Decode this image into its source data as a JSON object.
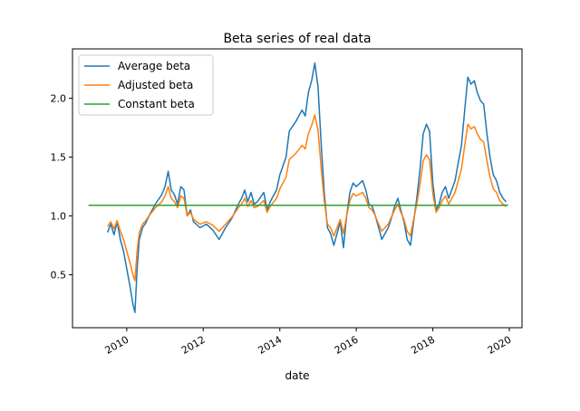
{
  "chart_data": {
    "type": "line",
    "title": "Beta series of real data",
    "xlabel": "date",
    "ylabel": "",
    "xlim": [
      "2008-08-01",
      "2020-05-01"
    ],
    "ylim": [
      0.05,
      2.42
    ],
    "xticks": [
      "2010",
      "2012",
      "2014",
      "2016",
      "2018",
      "2020"
    ],
    "yticks": [
      "0.5",
      "1.0",
      "1.5",
      "2.0"
    ],
    "xtick_rotation": 30,
    "grid": false,
    "legend_position": "top-left",
    "series": [
      {
        "name": "Average beta",
        "color": "#1f77b4",
        "points": [
          [
            "2009-07-01",
            0.86
          ],
          [
            "2009-08-01",
            0.93
          ],
          [
            "2009-09-01",
            0.84
          ],
          [
            "2009-10-01",
            0.95
          ],
          [
            "2009-11-01",
            0.8
          ],
          [
            "2009-12-01",
            0.7
          ],
          [
            "2010-01-01",
            0.55
          ],
          [
            "2010-02-01",
            0.4
          ],
          [
            "2010-03-01",
            0.25
          ],
          [
            "2010-03-20",
            0.18
          ],
          [
            "2010-04-10",
            0.55
          ],
          [
            "2010-05-01",
            0.8
          ],
          [
            "2010-06-01",
            0.9
          ],
          [
            "2010-07-01",
            0.94
          ],
          [
            "2010-08-01",
            1.0
          ],
          [
            "2010-10-01",
            1.1
          ],
          [
            "2010-12-01",
            1.18
          ],
          [
            "2011-01-01",
            1.25
          ],
          [
            "2011-02-01",
            1.38
          ],
          [
            "2011-03-01",
            1.22
          ],
          [
            "2011-04-01",
            1.18
          ],
          [
            "2011-05-01",
            1.1
          ],
          [
            "2011-06-01",
            1.25
          ],
          [
            "2011-07-01",
            1.22
          ],
          [
            "2011-08-01",
            1.0
          ],
          [
            "2011-09-01",
            1.05
          ],
          [
            "2011-10-01",
            0.95
          ],
          [
            "2011-12-01",
            0.9
          ],
          [
            "2012-02-01",
            0.93
          ],
          [
            "2012-04-01",
            0.88
          ],
          [
            "2012-06-01",
            0.8
          ],
          [
            "2012-08-01",
            0.9
          ],
          [
            "2012-10-01",
            0.98
          ],
          [
            "2012-12-01",
            1.1
          ],
          [
            "2013-01-01",
            1.15
          ],
          [
            "2013-02-01",
            1.22
          ],
          [
            "2013-03-01",
            1.12
          ],
          [
            "2013-04-01",
            1.2
          ],
          [
            "2013-05-01",
            1.1
          ],
          [
            "2013-06-01",
            1.12
          ],
          [
            "2013-08-01",
            1.2
          ],
          [
            "2013-09-01",
            1.05
          ],
          [
            "2013-10-01",
            1.12
          ],
          [
            "2013-12-01",
            1.22
          ],
          [
            "2014-01-01",
            1.35
          ],
          [
            "2014-03-01",
            1.5
          ],
          [
            "2014-04-01",
            1.72
          ],
          [
            "2014-06-01",
            1.8
          ],
          [
            "2014-08-01",
            1.9
          ],
          [
            "2014-09-01",
            1.85
          ],
          [
            "2014-10-01",
            2.05
          ],
          [
            "2014-11-01",
            2.15
          ],
          [
            "2014-12-01",
            2.3
          ],
          [
            "2015-01-01",
            2.1
          ],
          [
            "2015-02-01",
            1.6
          ],
          [
            "2015-03-01",
            1.2
          ],
          [
            "2015-04-01",
            0.9
          ],
          [
            "2015-05-01",
            0.85
          ],
          [
            "2015-06-01",
            0.75
          ],
          [
            "2015-07-01",
            0.85
          ],
          [
            "2015-08-01",
            0.95
          ],
          [
            "2015-09-01",
            0.73
          ],
          [
            "2015-10-01",
            1.0
          ],
          [
            "2015-11-01",
            1.2
          ],
          [
            "2015-12-01",
            1.28
          ],
          [
            "2016-01-01",
            1.25
          ],
          [
            "2016-03-01",
            1.3
          ],
          [
            "2016-04-01",
            1.22
          ],
          [
            "2016-05-01",
            1.1
          ],
          [
            "2016-06-01",
            1.08
          ],
          [
            "2016-07-01",
            1.0
          ],
          [
            "2016-08-01",
            0.9
          ],
          [
            "2016-09-01",
            0.8
          ],
          [
            "2016-10-01",
            0.85
          ],
          [
            "2016-11-01",
            0.9
          ],
          [
            "2016-12-01",
            0.98
          ],
          [
            "2017-01-01",
            1.08
          ],
          [
            "2017-02-01",
            1.15
          ],
          [
            "2017-03-01",
            1.05
          ],
          [
            "2017-04-01",
            0.95
          ],
          [
            "2017-05-01",
            0.8
          ],
          [
            "2017-06-01",
            0.75
          ],
          [
            "2017-07-01",
            0.95
          ],
          [
            "2017-08-01",
            1.15
          ],
          [
            "2017-09-01",
            1.4
          ],
          [
            "2017-10-01",
            1.7
          ],
          [
            "2017-11-01",
            1.78
          ],
          [
            "2017-12-01",
            1.72
          ],
          [
            "2018-01-01",
            1.28
          ],
          [
            "2018-02-01",
            1.05
          ],
          [
            "2018-03-01",
            1.1
          ],
          [
            "2018-04-01",
            1.2
          ],
          [
            "2018-05-01",
            1.25
          ],
          [
            "2018-06-01",
            1.15
          ],
          [
            "2018-08-01",
            1.3
          ],
          [
            "2018-10-01",
            1.6
          ],
          [
            "2018-11-01",
            1.9
          ],
          [
            "2018-12-01",
            2.18
          ],
          [
            "2019-01-01",
            2.12
          ],
          [
            "2019-02-01",
            2.15
          ],
          [
            "2019-03-01",
            2.05
          ],
          [
            "2019-04-01",
            1.98
          ],
          [
            "2019-05-01",
            1.95
          ],
          [
            "2019-06-01",
            1.7
          ],
          [
            "2019-07-01",
            1.5
          ],
          [
            "2019-08-01",
            1.35
          ],
          [
            "2019-09-01",
            1.3
          ],
          [
            "2019-10-01",
            1.2
          ],
          [
            "2019-11-01",
            1.15
          ],
          [
            "2019-12-01",
            1.12
          ]
        ]
      },
      {
        "name": "Adjusted beta",
        "color": "#ff7f0e",
        "points": [
          [
            "2009-07-01",
            0.91
          ],
          [
            "2009-08-01",
            0.95
          ],
          [
            "2009-09-01",
            0.89
          ],
          [
            "2009-10-01",
            0.96
          ],
          [
            "2009-11-01",
            0.87
          ],
          [
            "2009-12-01",
            0.8
          ],
          [
            "2010-01-01",
            0.7
          ],
          [
            "2010-02-01",
            0.6
          ],
          [
            "2010-03-01",
            0.5
          ],
          [
            "2010-03-20",
            0.45
          ],
          [
            "2010-04-10",
            0.7
          ],
          [
            "2010-05-01",
            0.86
          ],
          [
            "2010-06-01",
            0.93
          ],
          [
            "2010-07-01",
            0.96
          ],
          [
            "2010-08-01",
            1.0
          ],
          [
            "2010-10-01",
            1.07
          ],
          [
            "2010-12-01",
            1.12
          ],
          [
            "2011-01-01",
            1.17
          ],
          [
            "2011-02-01",
            1.25
          ],
          [
            "2011-03-01",
            1.15
          ],
          [
            "2011-04-01",
            1.12
          ],
          [
            "2011-05-01",
            1.07
          ],
          [
            "2011-06-01",
            1.17
          ],
          [
            "2011-07-01",
            1.15
          ],
          [
            "2011-08-01",
            1.0
          ],
          [
            "2011-09-01",
            1.03
          ],
          [
            "2011-10-01",
            0.97
          ],
          [
            "2011-12-01",
            0.93
          ],
          [
            "2012-02-01",
            0.95
          ],
          [
            "2012-04-01",
            0.92
          ],
          [
            "2012-06-01",
            0.87
          ],
          [
            "2012-08-01",
            0.93
          ],
          [
            "2012-10-01",
            0.99
          ],
          [
            "2012-12-01",
            1.07
          ],
          [
            "2013-01-01",
            1.1
          ],
          [
            "2013-02-01",
            1.15
          ],
          [
            "2013-03-01",
            1.08
          ],
          [
            "2013-04-01",
            1.13
          ],
          [
            "2013-05-01",
            1.07
          ],
          [
            "2013-06-01",
            1.08
          ],
          [
            "2013-08-01",
            1.13
          ],
          [
            "2013-09-01",
            1.03
          ],
          [
            "2013-10-01",
            1.08
          ],
          [
            "2013-12-01",
            1.15
          ],
          [
            "2014-01-01",
            1.23
          ],
          [
            "2014-03-01",
            1.33
          ],
          [
            "2014-04-01",
            1.48
          ],
          [
            "2014-06-01",
            1.53
          ],
          [
            "2014-08-01",
            1.6
          ],
          [
            "2014-09-01",
            1.57
          ],
          [
            "2014-10-01",
            1.7
          ],
          [
            "2014-11-01",
            1.77
          ],
          [
            "2014-12-01",
            1.86
          ],
          [
            "2015-01-01",
            1.73
          ],
          [
            "2015-02-01",
            1.4
          ],
          [
            "2015-03-01",
            1.13
          ],
          [
            "2015-04-01",
            0.93
          ],
          [
            "2015-05-01",
            0.9
          ],
          [
            "2015-06-01",
            0.83
          ],
          [
            "2015-07-01",
            0.9
          ],
          [
            "2015-08-01",
            0.97
          ],
          [
            "2015-09-01",
            0.85
          ],
          [
            "2015-10-01",
            1.0
          ],
          [
            "2015-11-01",
            1.13
          ],
          [
            "2015-12-01",
            1.19
          ],
          [
            "2016-01-01",
            1.17
          ],
          [
            "2016-03-01",
            1.2
          ],
          [
            "2016-04-01",
            1.15
          ],
          [
            "2016-05-01",
            1.07
          ],
          [
            "2016-06-01",
            1.05
          ],
          [
            "2016-07-01",
            1.0
          ],
          [
            "2016-08-01",
            0.93
          ],
          [
            "2016-09-01",
            0.87
          ],
          [
            "2016-10-01",
            0.9
          ],
          [
            "2016-11-01",
            0.93
          ],
          [
            "2016-12-01",
            0.99
          ],
          [
            "2017-01-01",
            1.05
          ],
          [
            "2017-02-01",
            1.1
          ],
          [
            "2017-03-01",
            1.03
          ],
          [
            "2017-04-01",
            0.97
          ],
          [
            "2017-05-01",
            0.87
          ],
          [
            "2017-06-01",
            0.83
          ],
          [
            "2017-07-01",
            0.97
          ],
          [
            "2017-08-01",
            1.1
          ],
          [
            "2017-09-01",
            1.27
          ],
          [
            "2017-10-01",
            1.47
          ],
          [
            "2017-11-01",
            1.52
          ],
          [
            "2017-12-01",
            1.48
          ],
          [
            "2018-01-01",
            1.19
          ],
          [
            "2018-02-01",
            1.03
          ],
          [
            "2018-03-01",
            1.07
          ],
          [
            "2018-04-01",
            1.13
          ],
          [
            "2018-05-01",
            1.17
          ],
          [
            "2018-06-01",
            1.1
          ],
          [
            "2018-08-01",
            1.2
          ],
          [
            "2018-10-01",
            1.4
          ],
          [
            "2018-11-01",
            1.6
          ],
          [
            "2018-12-01",
            1.78
          ],
          [
            "2019-01-01",
            1.74
          ],
          [
            "2019-02-01",
            1.76
          ],
          [
            "2019-03-01",
            1.7
          ],
          [
            "2019-04-01",
            1.65
          ],
          [
            "2019-05-01",
            1.63
          ],
          [
            "2019-06-01",
            1.47
          ],
          [
            "2019-07-01",
            1.33
          ],
          [
            "2019-08-01",
            1.23
          ],
          [
            "2019-09-01",
            1.2
          ],
          [
            "2019-10-01",
            1.13
          ],
          [
            "2019-11-01",
            1.1
          ],
          [
            "2019-12-01",
            1.08
          ]
        ]
      },
      {
        "name": "Constant beta",
        "color": "#2ca02c",
        "points": [
          [
            "2009-01-01",
            1.09
          ],
          [
            "2019-12-20",
            1.09
          ]
        ]
      }
    ]
  }
}
